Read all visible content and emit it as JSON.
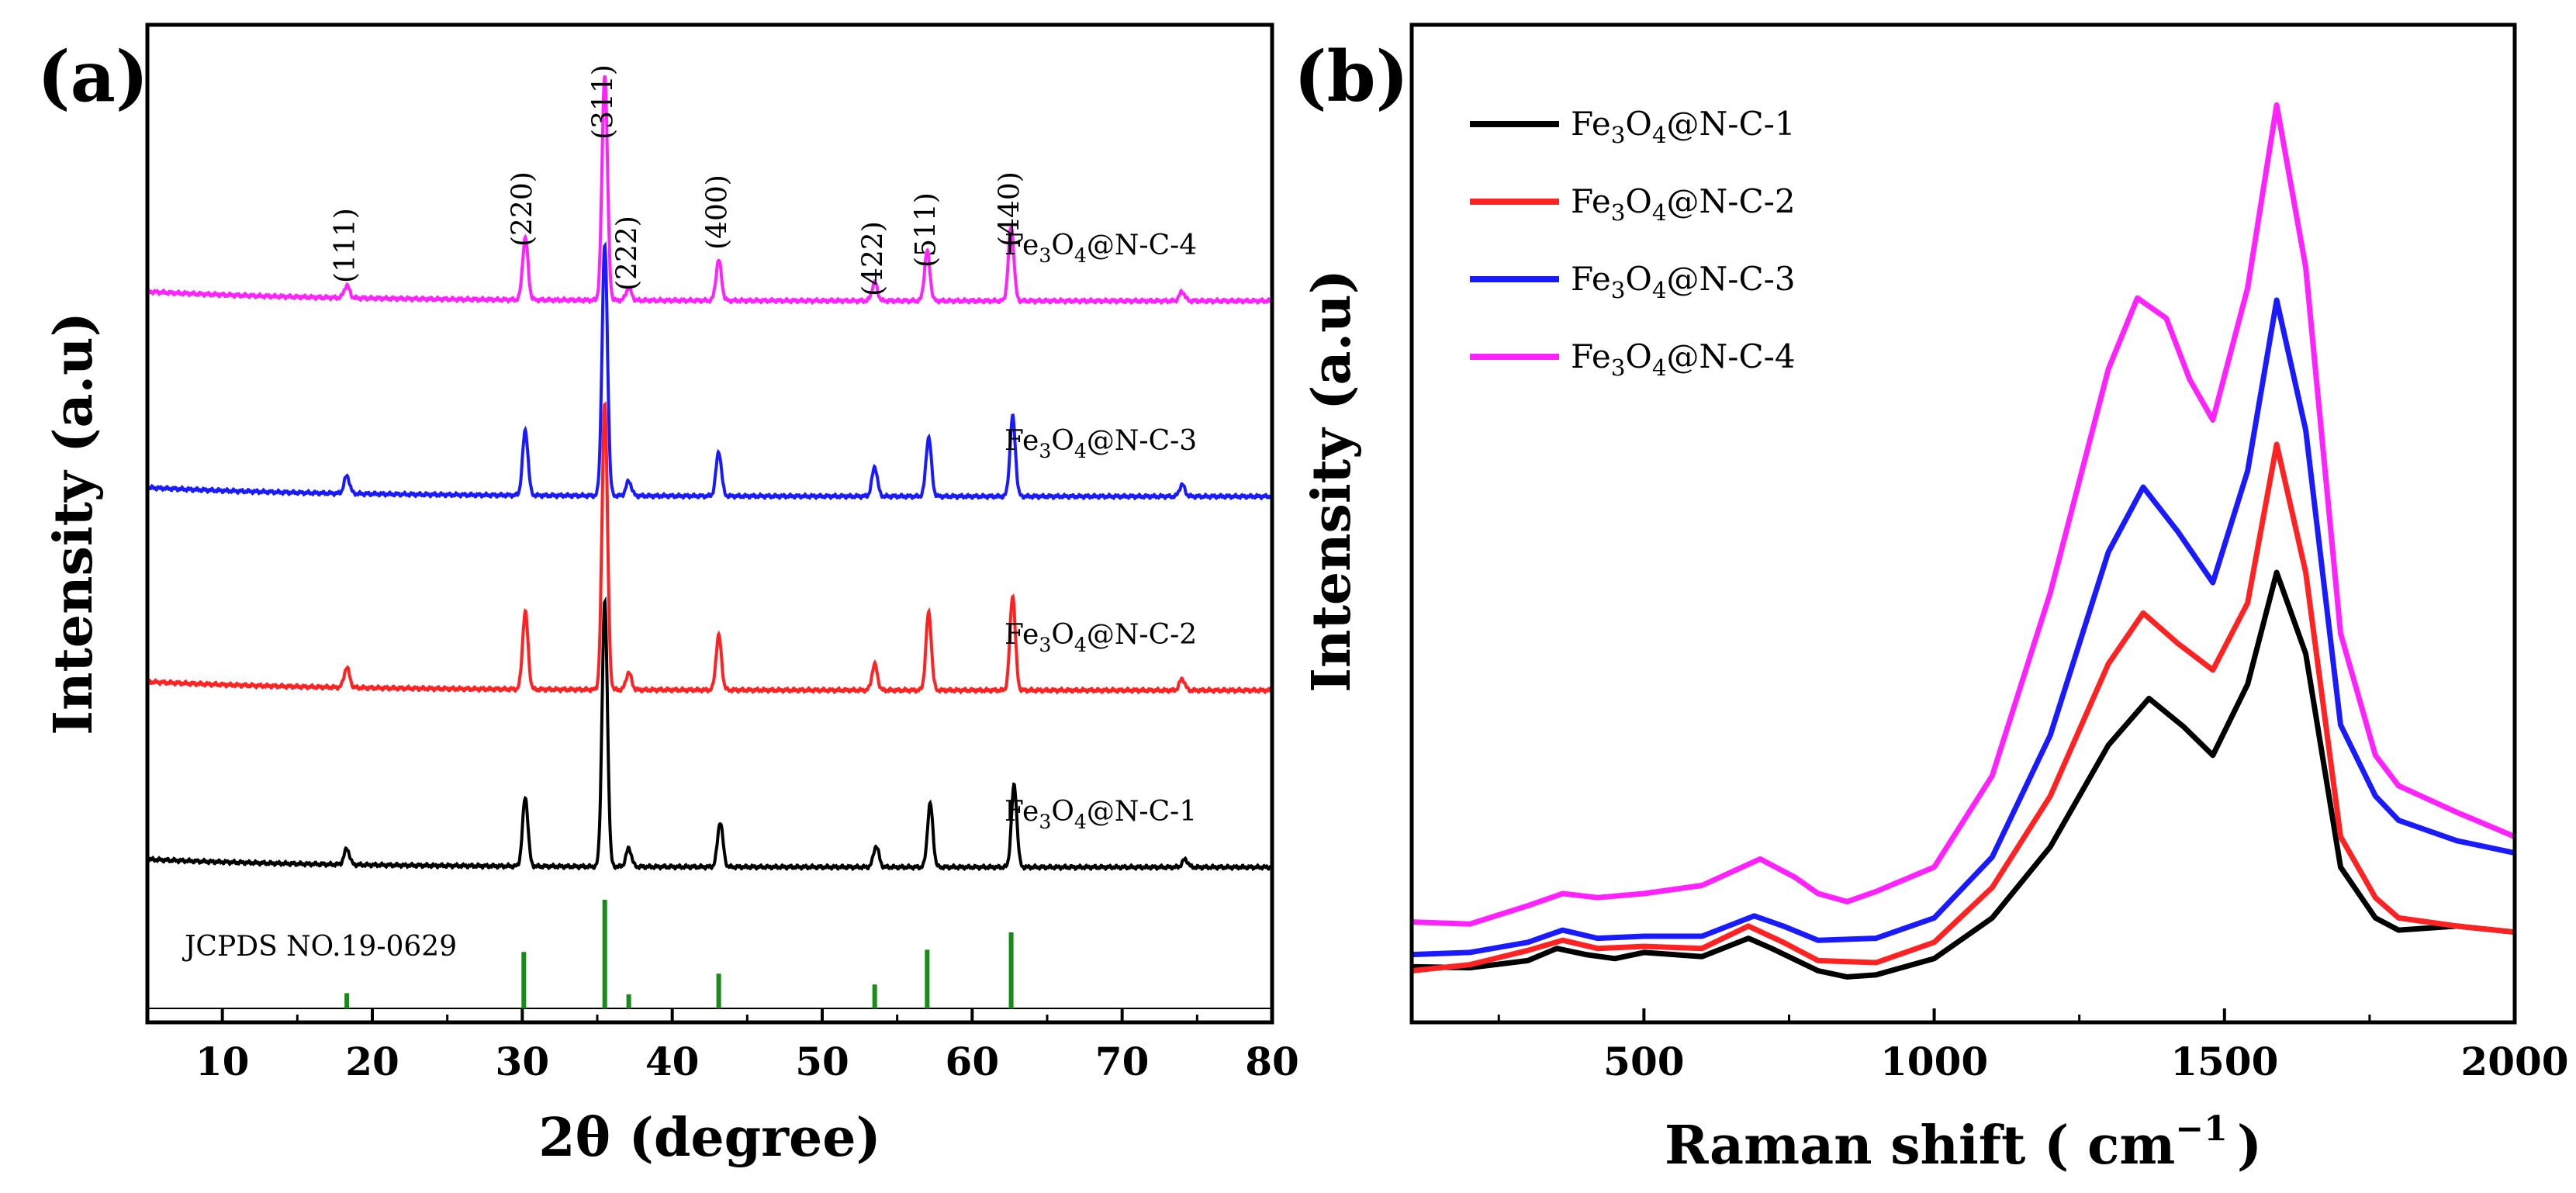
{
  "chart_data": [
    {
      "panel": "(a)",
      "type": "line",
      "xlabel": "2θ (degree)",
      "ylabel": "Intensity (a.u)",
      "xlim": [
        5,
        80
      ],
      "xticks": [
        10,
        20,
        30,
        40,
        50,
        60,
        70,
        80
      ],
      "y_ticks_shown": false,
      "peak_labels": [
        {
          "label": "(111)",
          "x": 18.3
        },
        {
          "label": "(220)",
          "x": 30.1
        },
        {
          "label": "(311)",
          "x": 35.5
        },
        {
          "label": "(222)",
          "x": 37.1
        },
        {
          "label": "(400)",
          "x": 43.1
        },
        {
          "label": "(422)",
          "x": 53.5
        },
        {
          "label": "(511)",
          "x": 57.0
        },
        {
          "label": "(440)",
          "x": 62.6
        }
      ],
      "reference": {
        "label": "JCPDS NO.19-0629",
        "color": "#1a8a1a",
        "peaks": [
          {
            "x": 18.3,
            "rel": 0.14
          },
          {
            "x": 30.1,
            "rel": 0.52
          },
          {
            "x": 35.5,
            "rel": 1.0
          },
          {
            "x": 37.1,
            "rel": 0.13
          },
          {
            "x": 43.1,
            "rel": 0.32
          },
          {
            "x": 53.5,
            "rel": 0.22
          },
          {
            "x": 57.0,
            "rel": 0.54
          },
          {
            "x": 62.6,
            "rel": 0.7
          }
        ]
      },
      "series": [
        {
          "name": "Fe3O4@N-C-1",
          "color": "#000000",
          "offset": 0.0,
          "label_parts": [
            {
              "t": "Fe"
            },
            {
              "t": "3",
              "sub": true
            },
            {
              "t": "O"
            },
            {
              "t": "4",
              "sub": true
            },
            {
              "t": "@N-C-1"
            }
          ],
          "peaks": [
            [
              18.3,
              0.06
            ],
            [
              30.2,
              0.26
            ],
            [
              35.5,
              1.0
            ],
            [
              37.1,
              0.07
            ],
            [
              43.2,
              0.17
            ],
            [
              53.6,
              0.08
            ],
            [
              57.2,
              0.24
            ],
            [
              62.8,
              0.31
            ],
            [
              74.2,
              0.03
            ]
          ]
        },
        {
          "name": "Fe3O4@N-C-2",
          "color": "#ff2222",
          "offset": 1.0,
          "label_parts": [
            {
              "t": "Fe"
            },
            {
              "t": "3",
              "sub": true
            },
            {
              "t": "O"
            },
            {
              "t": "4",
              "sub": true
            },
            {
              "t": "@N-C-2"
            }
          ],
          "peaks": [
            [
              18.3,
              0.07
            ],
            [
              30.2,
              0.27
            ],
            [
              35.5,
              1.0
            ],
            [
              37.1,
              0.06
            ],
            [
              43.1,
              0.19
            ],
            [
              53.5,
              0.09
            ],
            [
              57.1,
              0.27
            ],
            [
              62.7,
              0.33
            ],
            [
              74.0,
              0.04
            ]
          ]
        },
        {
          "name": "Fe3O4@N-C-3",
          "color": "#1a1aff",
          "offset": 1.9,
          "label_parts": [
            {
              "t": "Fe"
            },
            {
              "t": "3",
              "sub": true
            },
            {
              "t": "O"
            },
            {
              "t": "4",
              "sub": true
            },
            {
              "t": "@N-C-3"
            }
          ],
          "peaks": [
            [
              18.3,
              0.06
            ],
            [
              30.2,
              0.22
            ],
            [
              35.5,
              0.85
            ],
            [
              37.1,
              0.05
            ],
            [
              43.1,
              0.15
            ],
            [
              53.5,
              0.1
            ],
            [
              57.1,
              0.2
            ],
            [
              62.7,
              0.27
            ],
            [
              74.0,
              0.04
            ]
          ]
        },
        {
          "name": "Fe3O4@N-C-4",
          "color": "#ff22ff",
          "offset": 2.9,
          "label_parts": [
            {
              "t": "Fe"
            },
            {
              "t": "3",
              "sub": true
            },
            {
              "t": "O"
            },
            {
              "t": "4",
              "sub": true
            },
            {
              "t": "@N-C-4"
            }
          ],
          "peaks": [
            [
              18.3,
              0.04
            ],
            [
              30.2,
              0.2
            ],
            [
              35.5,
              0.73
            ],
            [
              37.1,
              0.04
            ],
            [
              43.1,
              0.13
            ],
            [
              53.5,
              0.06
            ],
            [
              57.0,
              0.16
            ],
            [
              62.6,
              0.24
            ],
            [
              74.0,
              0.03
            ]
          ]
        }
      ]
    },
    {
      "panel": "(b)",
      "type": "line",
      "xlabel": "Raman shift ( cm",
      "xlabel_sup": "−1",
      "xlabel_end": ")",
      "ylabel": "Intensity (a.u)",
      "xlim": [
        100,
        2000
      ],
      "xticks": [
        500,
        1000,
        1500,
        2000
      ],
      "y_ticks_shown": false,
      "legend_position": "top-left",
      "series": [
        {
          "name": "Fe3O4@N-C-1",
          "color": "#000000",
          "label_parts": [
            {
              "t": "Fe"
            },
            {
              "t": "3",
              "sub": true
            },
            {
              "t": "O"
            },
            {
              "t": "4",
              "sub": true
            },
            {
              "t": "@N-C-1"
            }
          ],
          "points": [
            [
              100,
              0.6
            ],
            [
              200,
              0.55
            ],
            [
              300,
              0.9
            ],
            [
              350,
              1.5
            ],
            [
              400,
              1.2
            ],
            [
              450,
              1.0
            ],
            [
              500,
              1.3
            ],
            [
              600,
              1.1
            ],
            [
              680,
              2.0
            ],
            [
              720,
              1.5
            ],
            [
              800,
              0.4
            ],
            [
              850,
              0.1
            ],
            [
              900,
              0.2
            ],
            [
              1000,
              1.0
            ],
            [
              1100,
              3.0
            ],
            [
              1200,
              6.5
            ],
            [
              1300,
              11.5
            ],
            [
              1370,
              13.8
            ],
            [
              1430,
              12.4
            ],
            [
              1480,
              11.0
            ],
            [
              1540,
              14.5
            ],
            [
              1590,
              20.0
            ],
            [
              1640,
              16.0
            ],
            [
              1700,
              5.5
            ],
            [
              1760,
              3.0
            ],
            [
              1800,
              2.4
            ],
            [
              1900,
              2.6
            ],
            [
              2000,
              2.3
            ]
          ]
        },
        {
          "name": "Fe3O4@N-C-2",
          "color": "#ff2222",
          "label_parts": [
            {
              "t": "Fe"
            },
            {
              "t": "3",
              "sub": true
            },
            {
              "t": "O"
            },
            {
              "t": "4",
              "sub": true
            },
            {
              "t": "@N-C-2"
            }
          ],
          "points": [
            [
              100,
              0.4
            ],
            [
              200,
              0.7
            ],
            [
              300,
              1.4
            ],
            [
              360,
              1.9
            ],
            [
              420,
              1.5
            ],
            [
              500,
              1.6
            ],
            [
              600,
              1.5
            ],
            [
              680,
              2.6
            ],
            [
              740,
              1.8
            ],
            [
              800,
              0.9
            ],
            [
              900,
              0.8
            ],
            [
              1000,
              1.8
            ],
            [
              1100,
              4.5
            ],
            [
              1200,
              9.0
            ],
            [
              1300,
              15.5
            ],
            [
              1360,
              18.0
            ],
            [
              1420,
              16.5
            ],
            [
              1480,
              15.2
            ],
            [
              1540,
              18.5
            ],
            [
              1590,
              26.3
            ],
            [
              1640,
              20.0
            ],
            [
              1700,
              7.0
            ],
            [
              1760,
              4.0
            ],
            [
              1800,
              3.0
            ],
            [
              1900,
              2.6
            ],
            [
              2000,
              2.3
            ]
          ]
        },
        {
          "name": "Fe3O4@N-C-3",
          "color": "#1a1aff",
          "label_parts": [
            {
              "t": "Fe"
            },
            {
              "t": "3",
              "sub": true
            },
            {
              "t": "O"
            },
            {
              "t": "4",
              "sub": true
            },
            {
              "t": "@N-C-3"
            }
          ],
          "points": [
            [
              100,
              1.2
            ],
            [
              200,
              1.3
            ],
            [
              300,
              1.8
            ],
            [
              360,
              2.4
            ],
            [
              420,
              2.0
            ],
            [
              500,
              2.1
            ],
            [
              600,
              2.1
            ],
            [
              690,
              3.1
            ],
            [
              740,
              2.6
            ],
            [
              800,
              1.9
            ],
            [
              900,
              2.0
            ],
            [
              1000,
              3.0
            ],
            [
              1100,
              6.0
            ],
            [
              1200,
              12.0
            ],
            [
              1300,
              21.0
            ],
            [
              1360,
              24.2
            ],
            [
              1420,
              22.0
            ],
            [
              1480,
              19.5
            ],
            [
              1540,
              25.0
            ],
            [
              1590,
              33.4
            ],
            [
              1640,
              27.0
            ],
            [
              1700,
              12.5
            ],
            [
              1760,
              9.0
            ],
            [
              1800,
              7.8
            ],
            [
              1900,
              6.8
            ],
            [
              2000,
              6.2
            ]
          ]
        },
        {
          "name": "Fe3O4@N-C-4",
          "color": "#ff22ff",
          "label_parts": [
            {
              "t": "Fe"
            },
            {
              "t": "3",
              "sub": true
            },
            {
              "t": "O"
            },
            {
              "t": "4",
              "sub": true
            },
            {
              "t": "@N-C-4"
            }
          ],
          "points": [
            [
              100,
              2.8
            ],
            [
              200,
              2.7
            ],
            [
              300,
              3.6
            ],
            [
              360,
              4.2
            ],
            [
              420,
              4.0
            ],
            [
              500,
              4.2
            ],
            [
              600,
              4.6
            ],
            [
              700,
              5.9
            ],
            [
              760,
              5.0
            ],
            [
              800,
              4.2
            ],
            [
              850,
              3.8
            ],
            [
              900,
              4.3
            ],
            [
              1000,
              5.5
            ],
            [
              1100,
              10.0
            ],
            [
              1200,
              19.0
            ],
            [
              1300,
              30.0
            ],
            [
              1350,
              33.5
            ],
            [
              1400,
              32.5
            ],
            [
              1440,
              29.5
            ],
            [
              1480,
              27.5
            ],
            [
              1540,
              34.0
            ],
            [
              1590,
              43.0
            ],
            [
              1640,
              35.0
            ],
            [
              1700,
              17.0
            ],
            [
              1760,
              11.0
            ],
            [
              1800,
              9.5
            ],
            [
              1900,
              8.2
            ],
            [
              2000,
              7.0
            ]
          ]
        }
      ]
    }
  ]
}
